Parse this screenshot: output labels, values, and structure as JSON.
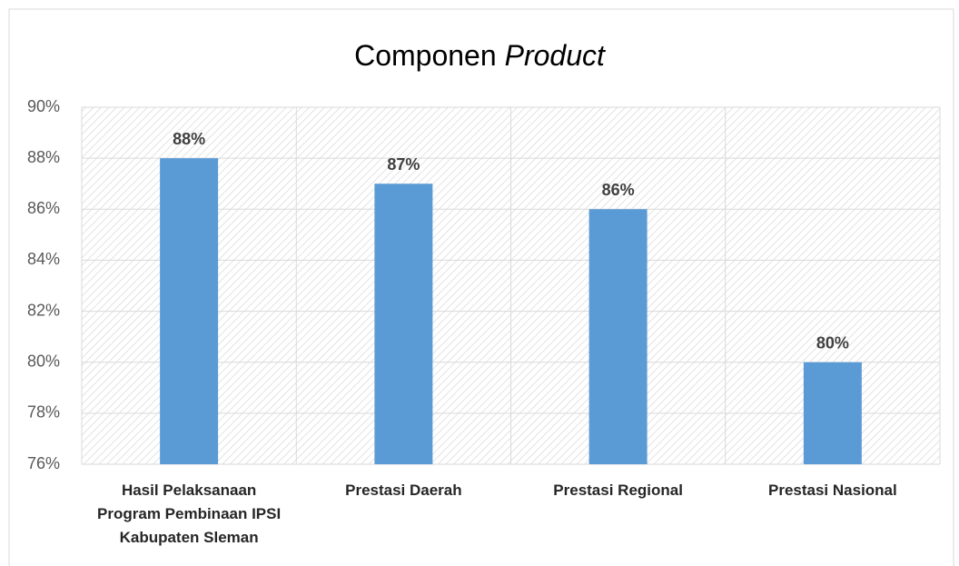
{
  "chart_data": {
    "type": "bar",
    "title": [
      "Componen",
      "Product"
    ],
    "categories": [
      "Hasil Pelaksanaan Program Pembinaan IPSI Kabupaten Sleman",
      "Prestasi Daerah",
      "Prestasi Regional",
      "Prestasi Nasional"
    ],
    "values": [
      88,
      87,
      86,
      80
    ],
    "value_labels": [
      "88%",
      "87%",
      "86%",
      "80%"
    ],
    "color": "#5b9bd5",
    "ylim": [
      76,
      90
    ],
    "yticks": [
      {
        "value": 76,
        "label": "76%"
      },
      {
        "value": 78,
        "label": "78%"
      },
      {
        "value": 80,
        "label": "80%"
      },
      {
        "value": 82,
        "label": "82%"
      },
      {
        "value": 84,
        "label": "84%"
      },
      {
        "value": 86,
        "label": "86%"
      },
      {
        "value": 88,
        "label": "88%"
      },
      {
        "value": 90,
        "label": "90%"
      }
    ],
    "grid": true
  }
}
